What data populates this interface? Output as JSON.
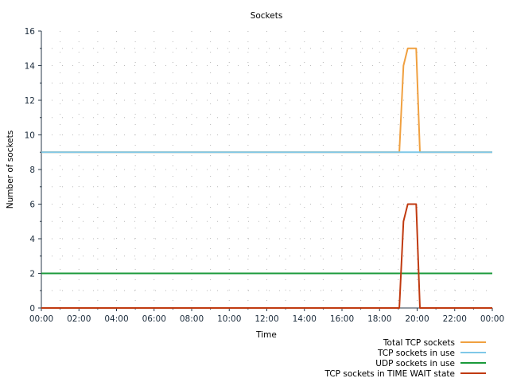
{
  "chart_data": {
    "type": "line",
    "title": "Sockets",
    "xlabel": "Time",
    "ylabel": "Number of sockets",
    "xlim": [
      0,
      24
    ],
    "ylim": [
      0,
      16
    ],
    "x_ticks": [
      0,
      2,
      4,
      6,
      8,
      10,
      12,
      14,
      16,
      18,
      20,
      22,
      24
    ],
    "x_tick_labels": [
      "00:00",
      "02:00",
      "04:00",
      "06:00",
      "08:00",
      "10:00",
      "12:00",
      "14:00",
      "16:00",
      "18:00",
      "20:00",
      "22:00",
      "00:00"
    ],
    "y_ticks": [
      0,
      2,
      4,
      6,
      8,
      10,
      12,
      14,
      16
    ],
    "y_tick_labels": [
      "0",
      "2",
      "4",
      "6",
      "8",
      "10",
      "12",
      "14",
      "16"
    ],
    "grid": true,
    "legend_position": "bottom-right",
    "series": [
      {
        "name": "Total TCP sockets",
        "color": "#f0a040",
        "points": [
          [
            0,
            9
          ],
          [
            19.05,
            9
          ],
          [
            19.27,
            14
          ],
          [
            19.5,
            15
          ],
          [
            19.95,
            15
          ],
          [
            20.15,
            9
          ],
          [
            24,
            9
          ]
        ]
      },
      {
        "name": "TCP sockets in use",
        "color": "#7fc8e8",
        "points": [
          [
            0,
            9
          ],
          [
            24,
            9
          ]
        ]
      },
      {
        "name": "UDP sockets in use",
        "color": "#1a9a3a",
        "points": [
          [
            0,
            2
          ],
          [
            24,
            2
          ]
        ]
      },
      {
        "name": "TCP sockets in TIME WAIT state",
        "color": "#c03a10",
        "points": [
          [
            0,
            0
          ],
          [
            19.05,
            0
          ],
          [
            19.27,
            5
          ],
          [
            19.5,
            6
          ],
          [
            19.95,
            6
          ],
          [
            20.15,
            0
          ],
          [
            24,
            0
          ]
        ]
      }
    ]
  }
}
